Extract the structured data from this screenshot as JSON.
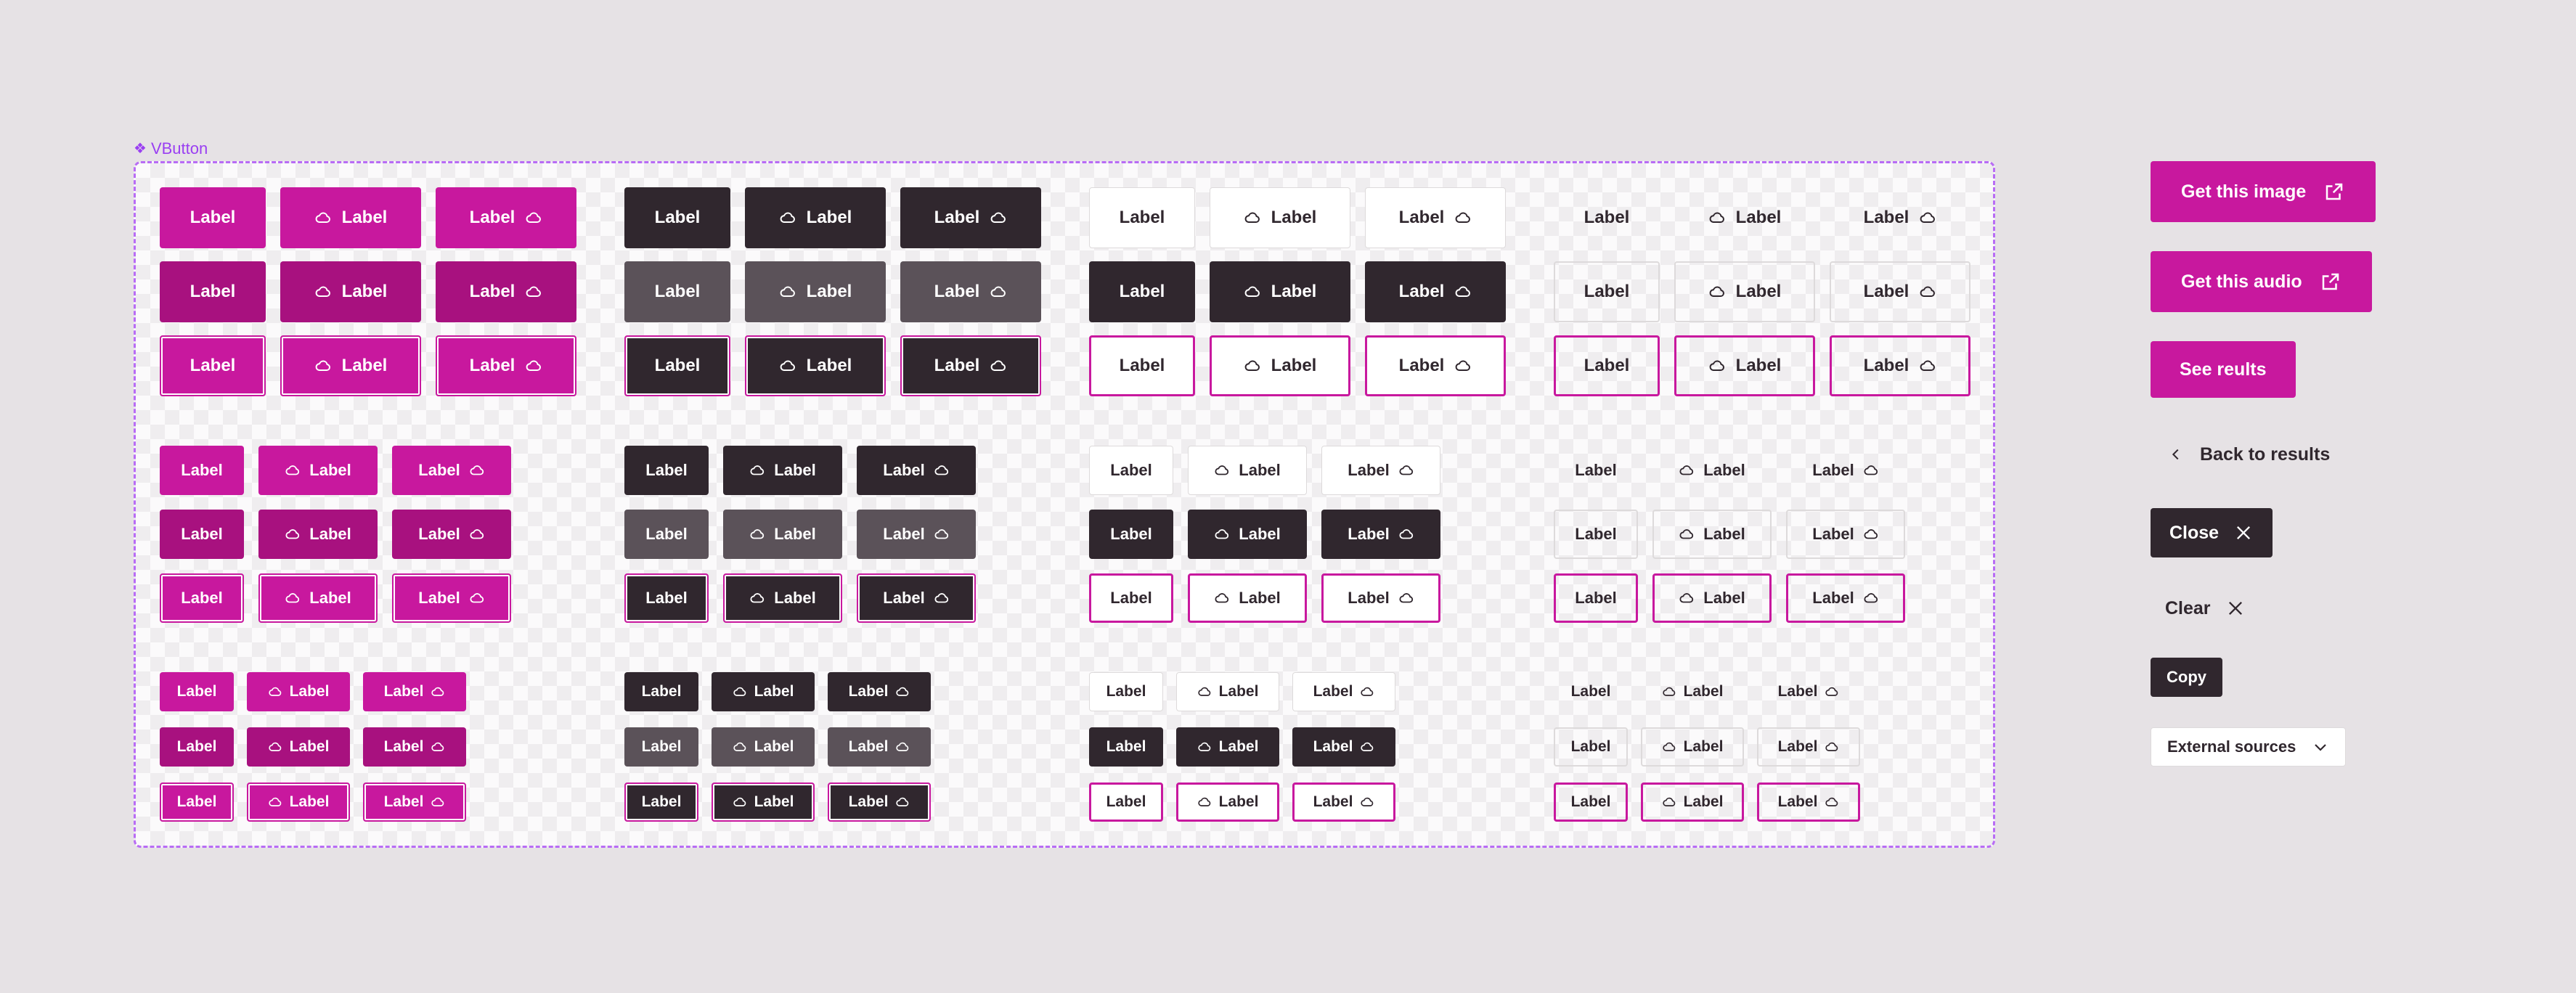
{
  "frame": {
    "title": "VButton",
    "icon": "component-diamond-icon"
  },
  "button_label": "Label",
  "icons": {
    "cloud": "cloud-icon",
    "external": "external-link-icon",
    "chevron_left": "chevron-left-icon",
    "close": "close-icon",
    "chevron_down": "chevron-down-icon"
  },
  "colors": {
    "pink": "#c8189e",
    "pink_hover": "#a8117f",
    "dark": "#30272e",
    "dark_hover": "#5b5259",
    "frame_border": "#b86cf5",
    "background": "#e6e2e5"
  },
  "side": {
    "get_image": "Get this image",
    "get_audio": "Get this audio",
    "see_results": "See reults",
    "back": "Back to results",
    "close": "Close",
    "clear": "Clear",
    "copy": "Copy",
    "external_sources": "External sources"
  }
}
